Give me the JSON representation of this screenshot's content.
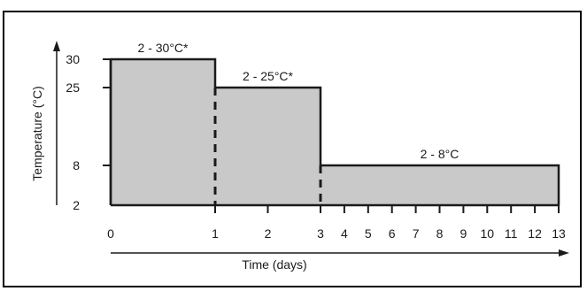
{
  "colors": {
    "fill": "#c9c9c9",
    "stroke": "#1a1a1a",
    "background": "#ffffff"
  },
  "chart_data": {
    "type": "area",
    "title": "",
    "xlabel": "Time (days)",
    "ylabel": "Temperature (°C)",
    "x_ticks": [
      0,
      1,
      2,
      3,
      4,
      5,
      6,
      7,
      8,
      9,
      10,
      11,
      12,
      13
    ],
    "y_ticks": [
      2,
      8,
      25,
      30
    ],
    "xlim": [
      0,
      13
    ],
    "ylim": [
      2,
      30
    ],
    "grid": false,
    "steps": [
      {
        "x_start": 0,
        "x_end": 1,
        "value": 30,
        "label": "2 - 30°C*"
      },
      {
        "x_start": 1,
        "x_end": 3,
        "value": 25,
        "label": "2 - 25°C*"
      },
      {
        "x_start": 3,
        "x_end": 13,
        "value": 8,
        "label": "2 - 8°C"
      }
    ]
  }
}
